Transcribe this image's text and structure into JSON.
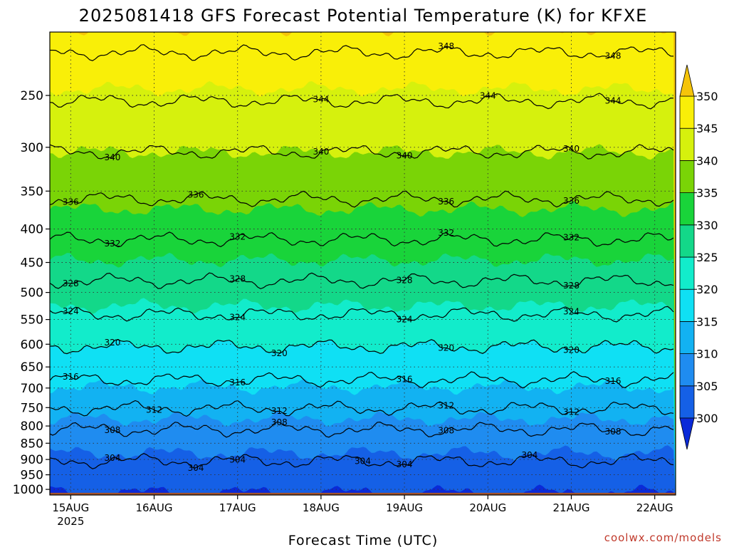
{
  "chart_data": {
    "type": "heatmap",
    "title": "2025081418 GFS Forecast Potential Temperature (K) for KFXE",
    "xlabel": "Forecast Time (UTC)",
    "ylabel": "",
    "y_scale": "log",
    "y_reversed": true,
    "ylim": [
      1020,
      200
    ],
    "y_ticks": [
      250,
      300,
      350,
      400,
      450,
      500,
      550,
      600,
      650,
      700,
      750,
      800,
      850,
      900,
      950,
      1000
    ],
    "xlim": [
      "2025-08-14T18",
      "2025-08-22T06"
    ],
    "x_ticks": [
      {
        "time": "2025-08-15T00",
        "label": "15AUG",
        "sublabel": "2025"
      },
      {
        "time": "2025-08-16T00",
        "label": "16AUG",
        "sublabel": ""
      },
      {
        "time": "2025-08-17T00",
        "label": "17AUG",
        "sublabel": ""
      },
      {
        "time": "2025-08-18T00",
        "label": "18AUG",
        "sublabel": ""
      },
      {
        "time": "2025-08-19T00",
        "label": "19AUG",
        "sublabel": ""
      },
      {
        "time": "2025-08-20T00",
        "label": "20AUG",
        "sublabel": ""
      },
      {
        "time": "2025-08-21T00",
        "label": "21AUG",
        "sublabel": ""
      },
      {
        "time": "2025-08-22T00",
        "label": "22AUG",
        "sublabel": ""
      }
    ],
    "grid": true,
    "colorbar": {
      "levels": [
        300,
        305,
        310,
        315,
        320,
        325,
        330,
        335,
        340,
        345,
        350
      ],
      "colors": [
        "#0a2ad8",
        "#1560e6",
        "#1f8cf0",
        "#12b2f2",
        "#0fe0f4",
        "#12eccb",
        "#13d889",
        "#19d43a",
        "#7ad406",
        "#d6f10d",
        "#f9ef08",
        "#f5c40a"
      ],
      "extend": "both"
    },
    "contour_interval": 4,
    "contours": [
      {
        "value": 304,
        "pressure": 905,
        "labels": [
          {
            "time": "2025-08-15T12",
            "text": "304"
          },
          {
            "time": "2025-08-16T12",
            "text": "304"
          },
          {
            "time": "2025-08-17T00",
            "text": "304"
          },
          {
            "time": "2025-08-18T12",
            "text": "304"
          },
          {
            "time": "2025-08-19T00",
            "text": "304"
          },
          {
            "time": "2025-08-20T12",
            "text": "304"
          }
        ]
      },
      {
        "value": 308,
        "pressure": 810,
        "labels": [
          {
            "time": "2025-08-15T12",
            "text": "308"
          },
          {
            "time": "2025-08-17T12",
            "text": "308"
          },
          {
            "time": "2025-08-19T12",
            "text": "308"
          },
          {
            "time": "2025-08-21T12",
            "text": "308"
          }
        ]
      },
      {
        "value": 312,
        "pressure": 752,
        "labels": [
          {
            "time": "2025-08-16T00",
            "text": "312"
          },
          {
            "time": "2025-08-17T12",
            "text": "312"
          },
          {
            "time": "2025-08-19T12",
            "text": "312"
          },
          {
            "time": "2025-08-21T00",
            "text": "312"
          }
        ]
      },
      {
        "value": 316,
        "pressure": 680,
        "labels": [
          {
            "time": "2025-08-15T00",
            "text": "316"
          },
          {
            "time": "2025-08-17T00",
            "text": "316"
          },
          {
            "time": "2025-08-19T00",
            "text": "316"
          },
          {
            "time": "2025-08-21T12",
            "text": "316"
          }
        ]
      },
      {
        "value": 320,
        "pressure": 605,
        "labels": [
          {
            "time": "2025-08-15T12",
            "text": "320"
          },
          {
            "time": "2025-08-17T12",
            "text": "320"
          },
          {
            "time": "2025-08-19T12",
            "text": "320"
          },
          {
            "time": "2025-08-21T00",
            "text": "320"
          }
        ]
      },
      {
        "value": 324,
        "pressure": 540,
        "labels": [
          {
            "time": "2025-08-15T00",
            "text": "324"
          },
          {
            "time": "2025-08-17T00",
            "text": "324"
          },
          {
            "time": "2025-08-19T00",
            "text": "324"
          },
          {
            "time": "2025-08-21T00",
            "text": "324"
          }
        ]
      },
      {
        "value": 328,
        "pressure": 480,
        "labels": [
          {
            "time": "2025-08-15T00",
            "text": "328"
          },
          {
            "time": "2025-08-17T00",
            "text": "328"
          },
          {
            "time": "2025-08-19T00",
            "text": "328"
          },
          {
            "time": "2025-08-21T00",
            "text": "328"
          }
        ]
      },
      {
        "value": 332,
        "pressure": 415,
        "labels": [
          {
            "time": "2025-08-15T12",
            "text": "332"
          },
          {
            "time": "2025-08-17T00",
            "text": "332"
          },
          {
            "time": "2025-08-19T12",
            "text": "332"
          },
          {
            "time": "2025-08-21T00",
            "text": "332"
          }
        ]
      },
      {
        "value": 336,
        "pressure": 360,
        "labels": [
          {
            "time": "2025-08-15T00",
            "text": "336"
          },
          {
            "time": "2025-08-16T12",
            "text": "336"
          },
          {
            "time": "2025-08-19T12",
            "text": "336"
          },
          {
            "time": "2025-08-21T00",
            "text": "336"
          }
        ]
      },
      {
        "value": 340,
        "pressure": 305,
        "labels": [
          {
            "time": "2025-08-15T12",
            "text": "340"
          },
          {
            "time": "2025-08-18T00",
            "text": "340"
          },
          {
            "time": "2025-08-19T00",
            "text": "340"
          },
          {
            "time": "2025-08-21T00",
            "text": "340"
          }
        ]
      },
      {
        "value": 344,
        "pressure": 255,
        "labels": [
          {
            "time": "2025-08-18T00",
            "text": "344"
          },
          {
            "time": "2025-08-20T00",
            "text": "344"
          },
          {
            "time": "2025-08-21T12",
            "text": "344"
          }
        ]
      },
      {
        "value": 348,
        "pressure": 215,
        "labels": [
          {
            "time": "2025-08-19T12",
            "text": "348"
          },
          {
            "time": "2025-08-21T12",
            "text": "348"
          }
        ]
      }
    ],
    "terrain": {
      "surface_pressure": 1012,
      "color": "#a0522d"
    },
    "credit": "coolwx.com/models"
  }
}
